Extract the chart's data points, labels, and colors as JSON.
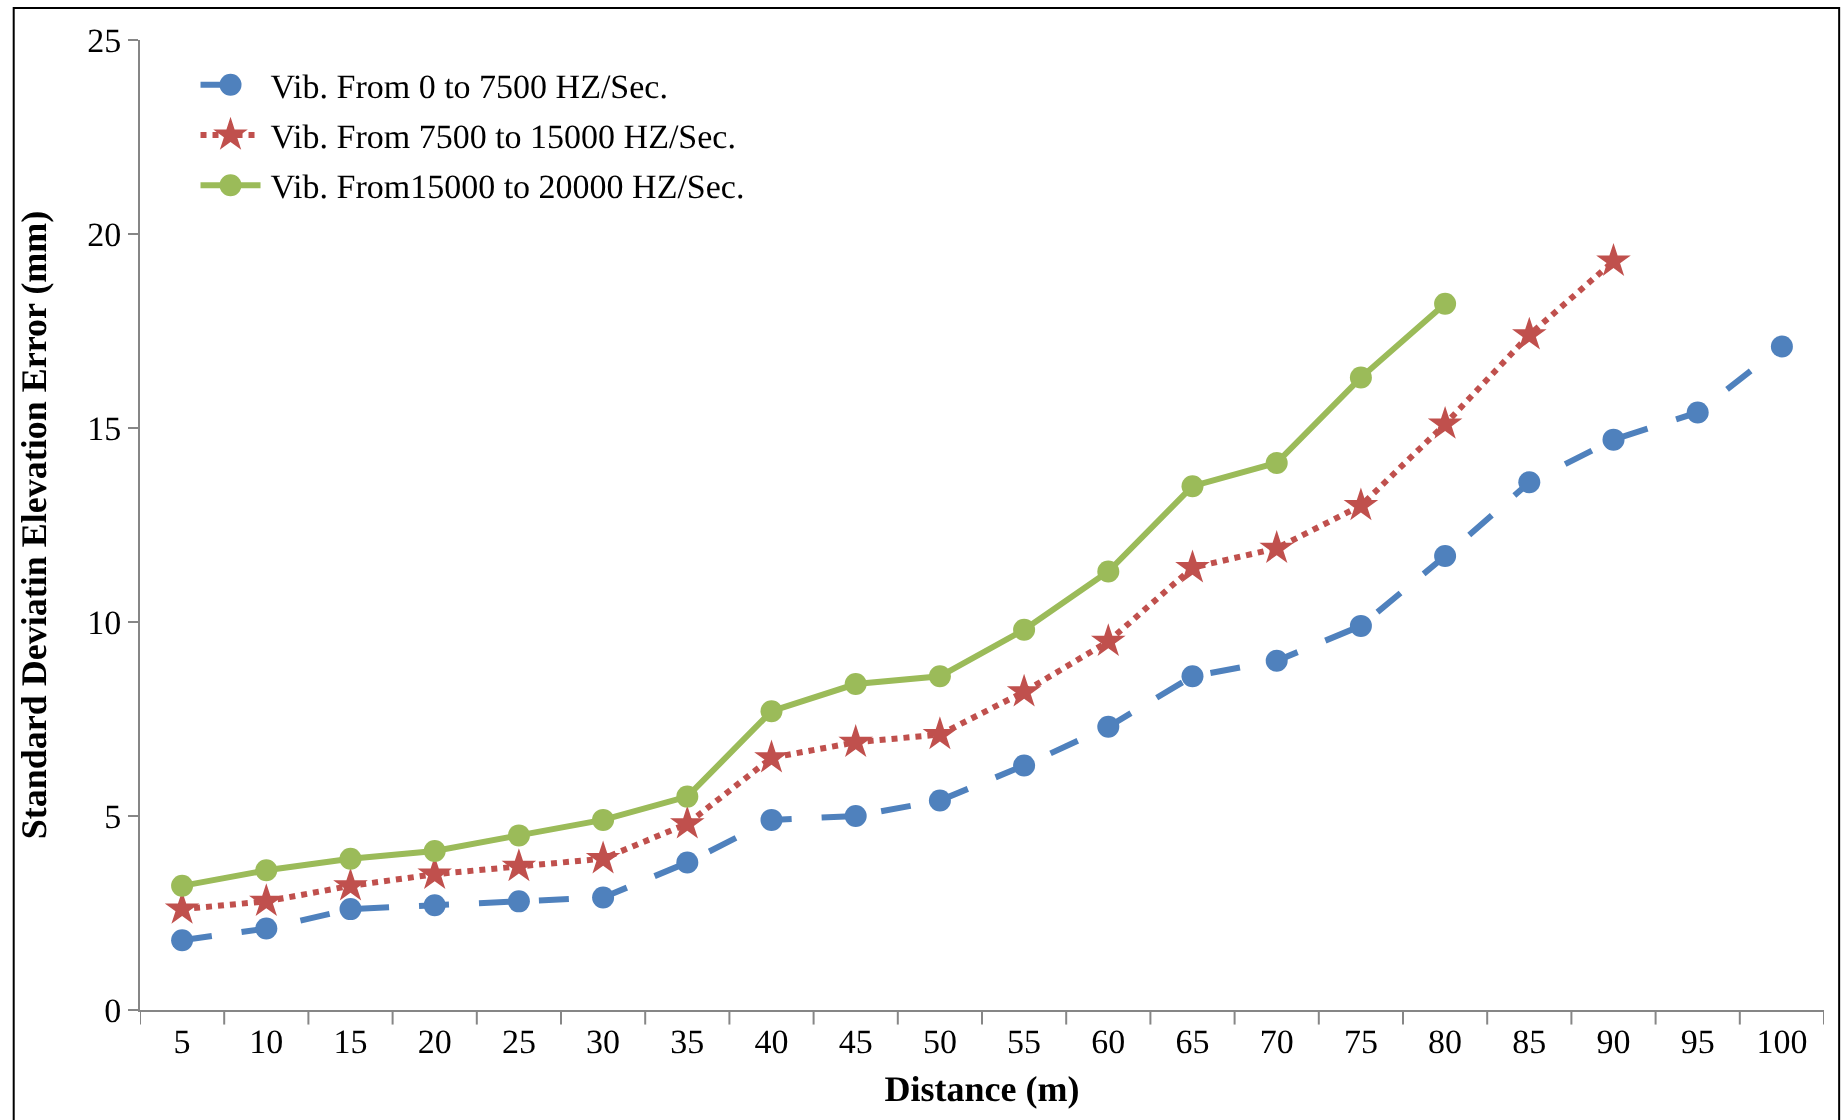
{
  "chart_data": {
    "type": "line",
    "xlabel": "Distance (m)",
    "ylabel": "Standard Deviatin Elevation Error (mm)",
    "categories": [
      "5",
      "10",
      "15",
      "20",
      "25",
      "30",
      "35",
      "40",
      "45",
      "50",
      "55",
      "60",
      "65",
      "70",
      "75",
      "80",
      "85",
      "90",
      "95",
      "100"
    ],
    "ylim": [
      0,
      25
    ],
    "yticks": [
      0,
      5,
      10,
      15,
      20,
      25
    ],
    "legend": "top left",
    "series": [
      {
        "name": "Vib. From 0 to 7500 HZ/Sec.",
        "color": "#4f81bd",
        "marker": "circle",
        "line_style": "dashed",
        "values": [
          1.8,
          2.1,
          2.6,
          2.7,
          2.8,
          2.9,
          3.8,
          4.9,
          5.0,
          5.4,
          6.3,
          7.3,
          8.6,
          9.0,
          9.9,
          11.7,
          13.6,
          14.7,
          15.4,
          17.1
        ]
      },
      {
        "name": "Vib. From 7500 to 15000 HZ/Sec.",
        "color": "#c0504d",
        "marker": "star",
        "line_style": "dotted",
        "values": [
          2.6,
          2.8,
          3.2,
          3.5,
          3.7,
          3.9,
          4.8,
          6.5,
          6.9,
          7.1,
          8.2,
          9.5,
          11.4,
          11.9,
          13.0,
          15.1,
          17.4,
          19.3,
          null,
          null
        ]
      },
      {
        "name": "Vib. From15000 to 20000 HZ/Sec.",
        "color": "#9bbb59",
        "marker": "circle",
        "line_style": "solid",
        "values": [
          3.2,
          3.6,
          3.9,
          4.1,
          4.5,
          4.9,
          5.5,
          7.7,
          8.4,
          8.6,
          9.8,
          11.3,
          13.5,
          14.1,
          16.3,
          18.2,
          null,
          null,
          null,
          null
        ]
      }
    ]
  }
}
